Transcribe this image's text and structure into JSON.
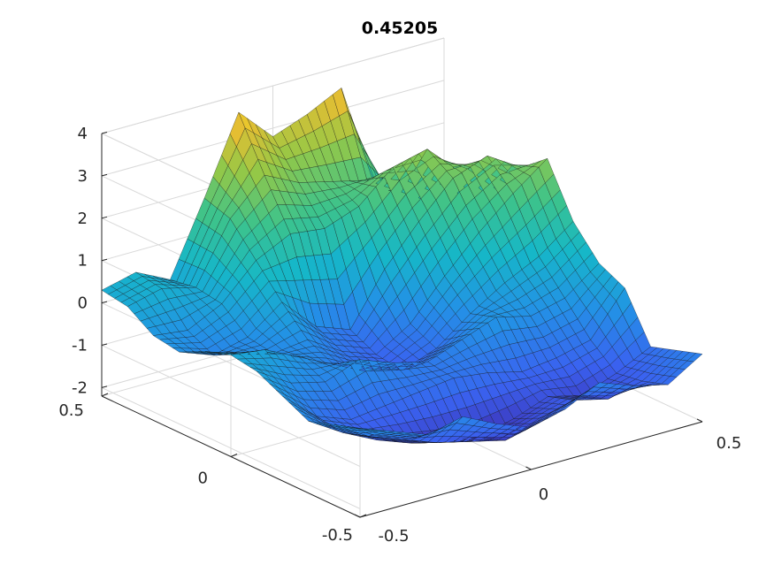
{
  "chart_data": {
    "type": "surface",
    "title": "0.45205",
    "xlabel": "",
    "ylabel": "",
    "zlabel": "",
    "xlim": [
      -0.5,
      0.5
    ],
    "ylim": [
      -0.5,
      0.5
    ],
    "zlim": [
      -2.2,
      4.0
    ],
    "x_ticks": [
      "-0.5",
      "0",
      "0.5"
    ],
    "y_ticks": [
      "-0.5",
      "0",
      "0.5"
    ],
    "z_ticks": [
      "-2",
      "-1",
      "0",
      "1",
      "2",
      "3",
      "4"
    ],
    "grid": true,
    "colormap": "parula",
    "colors": {
      "low": "#3e26a8",
      "mid": "#21b6a4",
      "high": "#f9fb0e",
      "edge": "#111111"
    },
    "surface": {
      "x": [
        -0.5,
        -0.4,
        -0.3,
        -0.2,
        -0.1,
        0.0,
        0.1,
        0.2,
        0.3,
        0.4,
        0.5
      ],
      "y": [
        -0.5,
        -0.4,
        -0.3,
        -0.2,
        -0.1,
        0.0,
        0.1,
        0.2,
        0.3,
        0.4,
        0.5
      ],
      "z": [
        [
          -0.1,
          -0.4,
          -0.7,
          -0.5,
          -0.9,
          -1.2,
          -1.0,
          -0.6,
          -0.9,
          -1.1,
          -0.6
        ],
        [
          -0.3,
          -0.8,
          -1.1,
          -1.4,
          -1.6,
          -1.8,
          -1.5,
          -1.3,
          -1.5,
          -1.3,
          -0.8
        ],
        [
          -0.5,
          -1.0,
          -1.4,
          -1.7,
          -1.9,
          -2.0,
          -1.8,
          -1.5,
          -1.7,
          -1.4,
          -1.0
        ],
        [
          -0.2,
          -0.9,
          -1.2,
          -1.1,
          -1.0,
          -0.9,
          -1.0,
          -1.2,
          -1.1,
          -0.9,
          0.1
        ],
        [
          0.1,
          -0.4,
          -0.6,
          -0.3,
          -0.6,
          -0.8,
          -0.5,
          -0.2,
          -0.4,
          -0.2,
          0.4
        ],
        [
          0.2,
          0.1,
          -0.3,
          -0.7,
          -1.1,
          -1.3,
          -1.0,
          -0.4,
          0.1,
          0.5,
          1.1
        ],
        [
          0.0,
          -0.3,
          -0.5,
          -0.4,
          -0.9,
          -1.2,
          -0.7,
          0.2,
          1.0,
          1.7,
          2.3
        ],
        [
          -0.3,
          -0.6,
          -0.4,
          0.2,
          -0.6,
          -0.9,
          0.3,
          1.2,
          2.0,
          2.3,
          1.8
        ],
        [
          -0.2,
          -0.3,
          0.1,
          0.9,
          1.3,
          1.2,
          1.5,
          2.2,
          2.4,
          1.6,
          0.7
        ],
        [
          0.2,
          0.4,
          0.2,
          1.6,
          2.4,
          2.0,
          1.8,
          1.6,
          1.1,
          0.6,
          0.2
        ],
        [
          0.3,
          0.5,
          0.1,
          1.8,
          3.6,
          2.8,
          3.1,
          3.5,
          0.9,
          0.3,
          0.0
        ]
      ]
    }
  }
}
